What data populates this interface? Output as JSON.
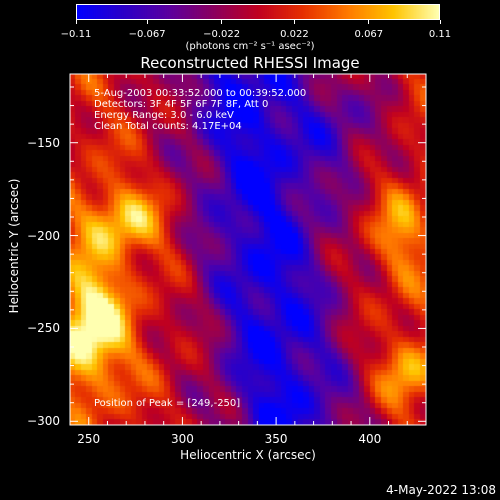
{
  "chart_data": {
    "type": "heatmap",
    "title": "Reconstructed RHESSI Image",
    "xlabel": "Heliocentric X (arcsec)",
    "ylabel": "Heliocentric Y (arcsec)",
    "xlim": [
      240,
      430
    ],
    "ylim": [
      -302,
      -113
    ],
    "x_ticks": [
      250,
      300,
      350,
      400
    ],
    "y_ticks": [
      -150,
      -200,
      -250,
      -300
    ],
    "x_tick_labels": [
      "250",
      "300",
      "350",
      "400"
    ],
    "y_tick_labels": [
      "−150",
      "−200",
      "−250",
      "−300"
    ],
    "colorbar": {
      "range": [
        -0.11,
        0.11
      ],
      "ticks": [
        -0.11,
        -0.067,
        -0.022,
        0.022,
        0.067,
        0.11
      ],
      "tick_labels": [
        "−0.11",
        "−0.067",
        "−0.022",
        "0.022",
        "0.067",
        "0.11"
      ],
      "unit_label": "(photons cm⁻² s⁻¹ asec⁻²)",
      "colors": [
        "#0000ff",
        "#2a00c8",
        "#5a00a0",
        "#8a0060",
        "#c00020",
        "#e63000",
        "#ff7a00",
        "#ffc400",
        "#ffffb0"
      ]
    },
    "info_lines": [
      " 5-Aug-2003 00:33:52.000 to 00:39:52.000",
      "Detectors: 3F 4F 5F 6F 7F 8F, Att 0",
      "Energy Range: 3.0 - 6.0 keV",
      "Clean    Total counts: 4.17E+04"
    ],
    "peak_label": "Position of Peak = [249,-250]",
    "peak_position": [
      249,
      -250
    ]
  },
  "timestamp": "4-May-2022 13:08"
}
